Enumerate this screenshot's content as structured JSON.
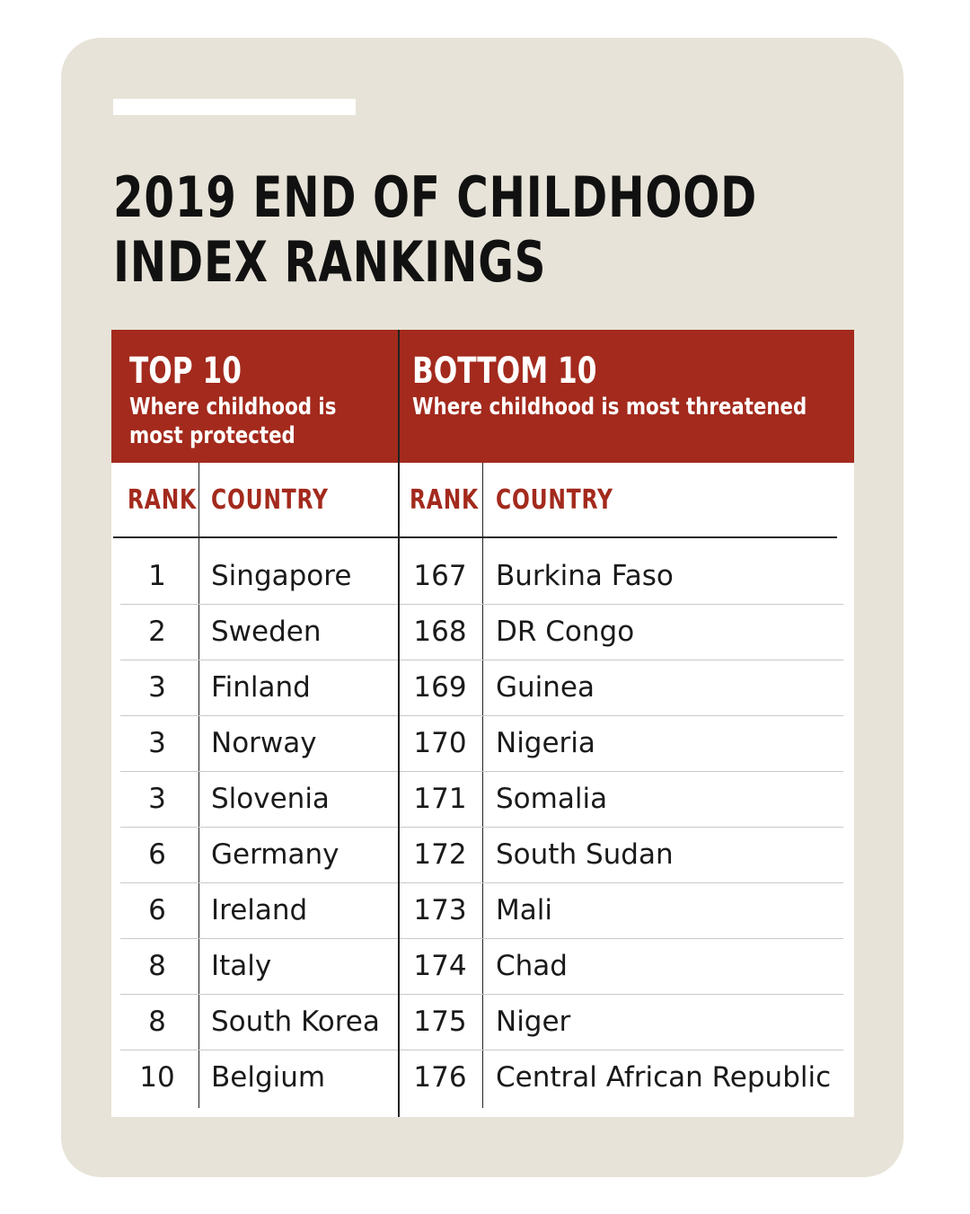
{
  "title": {
    "line1": "2019 END OF CHILDHOOD",
    "line2": "INDEX RANKINGS"
  },
  "top10": {
    "heading": "TOP 10",
    "subtitle_line1": "Where childhood is",
    "subtitle_line2": "most protected",
    "rank_label": "RANK",
    "country_label": "COUNTRY",
    "rows": [
      {
        "rank": "1",
        "country": "Singapore"
      },
      {
        "rank": "2",
        "country": "Sweden"
      },
      {
        "rank": "3",
        "country": "Finland"
      },
      {
        "rank": "3",
        "country": "Norway"
      },
      {
        "rank": "3",
        "country": "Slovenia"
      },
      {
        "rank": "6",
        "country": "Germany"
      },
      {
        "rank": "6",
        "country": "Ireland"
      },
      {
        "rank": "8",
        "country": "Italy"
      },
      {
        "rank": "8",
        "country": "South Korea"
      },
      {
        "rank": "10",
        "country": "Belgium"
      }
    ]
  },
  "bottom10": {
    "heading": "BOTTOM 10",
    "subtitle": "Where childhood is most threatened",
    "rank_label": "RANK",
    "country_label": "COUNTRY",
    "rows": [
      {
        "rank": "167",
        "country": "Burkina Faso"
      },
      {
        "rank": "168",
        "country": "DR Congo"
      },
      {
        "rank": "169",
        "country": "Guinea"
      },
      {
        "rank": "170",
        "country": "Nigeria"
      },
      {
        "rank": "171",
        "country": "Somalia"
      },
      {
        "rank": "172",
        "country": "South Sudan"
      },
      {
        "rank": "173",
        "country": "Mali"
      },
      {
        "rank": "174",
        "country": "Chad"
      },
      {
        "rank": "175",
        "country": "Niger"
      },
      {
        "rank": "176",
        "country": "Central African Republic"
      }
    ]
  },
  "colors": {
    "accent": "#a32a1d",
    "card_background": "#e7e3d8"
  }
}
